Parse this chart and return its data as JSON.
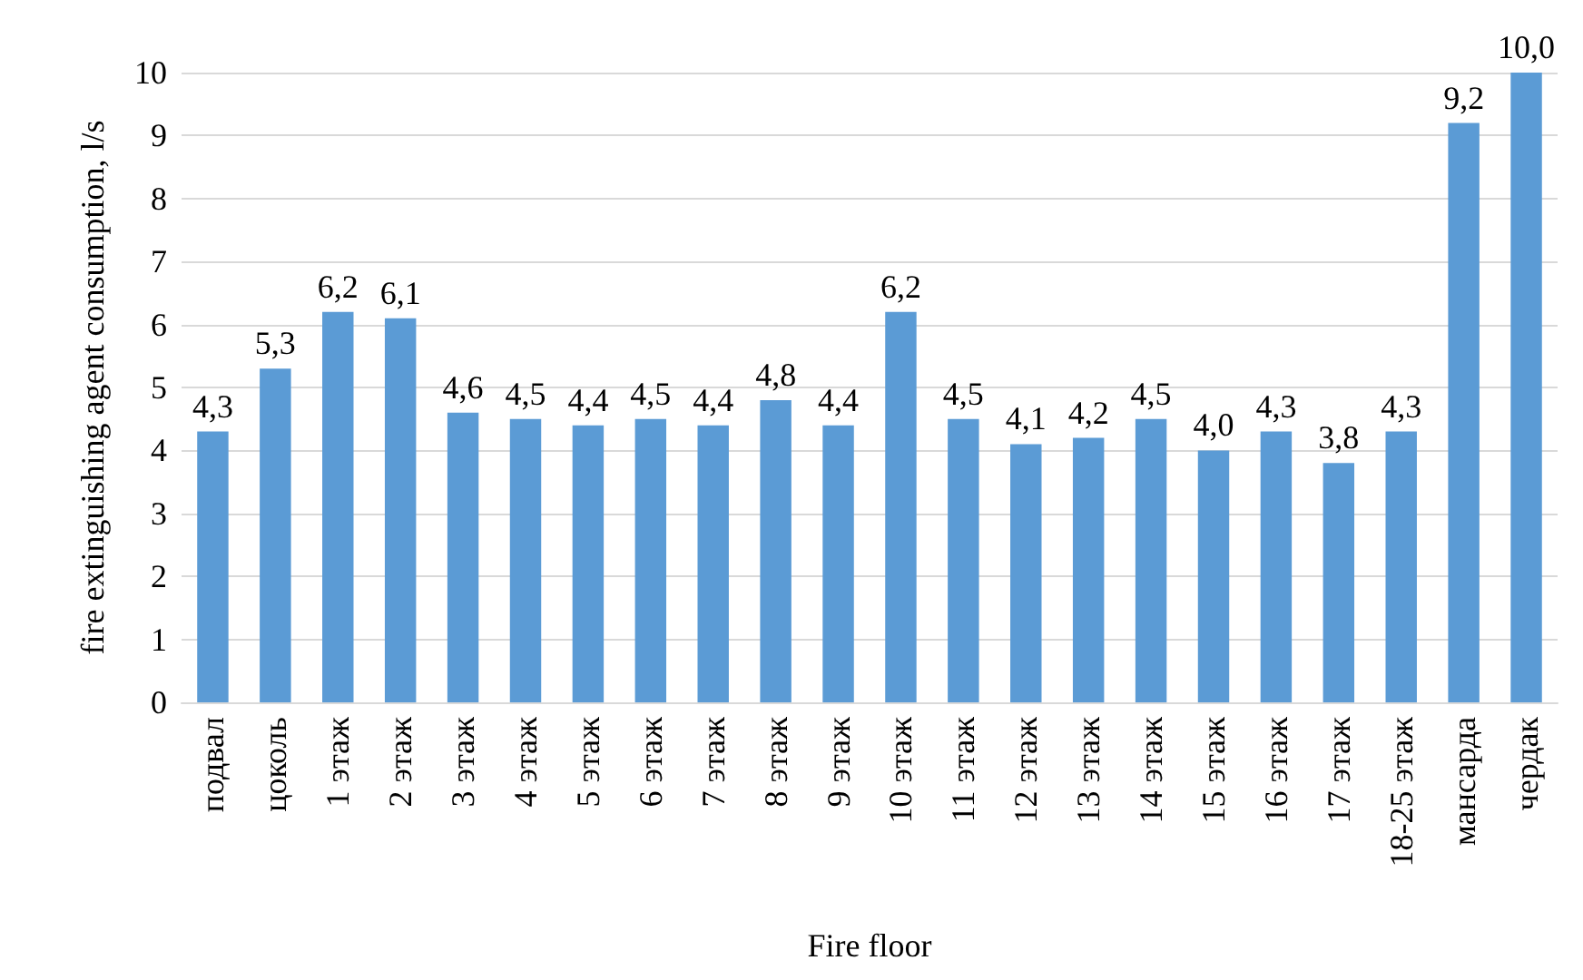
{
  "chart_data": {
    "type": "bar",
    "xlabel": "Fire floor",
    "ylabel": "fire extinguishing agent consumption, l/s",
    "categories": [
      "подвал",
      "цоколь",
      "1 этаж",
      "2 этаж",
      "3 этаж",
      "4 этаж",
      "5 этаж",
      "6 этаж",
      "7 этаж",
      "8 этаж",
      "9 этаж",
      "10 этаж",
      "11 этаж",
      "12 этаж",
      "13 этаж",
      "14 этаж",
      "15 этаж",
      "16 этаж",
      "17 этаж",
      "18-25 этаж",
      "мансарда",
      "чердак"
    ],
    "values": [
      4.3,
      5.3,
      6.2,
      6.1,
      4.6,
      4.5,
      4.4,
      4.5,
      4.4,
      4.8,
      4.4,
      6.2,
      4.5,
      4.1,
      4.2,
      4.5,
      4.0,
      4.3,
      3.8,
      4.3,
      9.2,
      10.0
    ],
    "value_labels": [
      "4,3",
      "5,3",
      "6,2",
      "6,1",
      "4,6",
      "4,5",
      "4,4",
      "4,5",
      "4,4",
      "4,8",
      "4,4",
      "6,2",
      "4,5",
      "4,1",
      "4,2",
      "4,5",
      "4,0",
      "4,3",
      "3,8",
      "4,3",
      "9,2",
      "10,0"
    ],
    "color": "#5b9bd5",
    "ylim": [
      0,
      10
    ],
    "yticks": [
      0,
      1,
      2,
      3,
      4,
      5,
      6,
      7,
      8,
      9,
      10
    ],
    "grid": "y"
  }
}
